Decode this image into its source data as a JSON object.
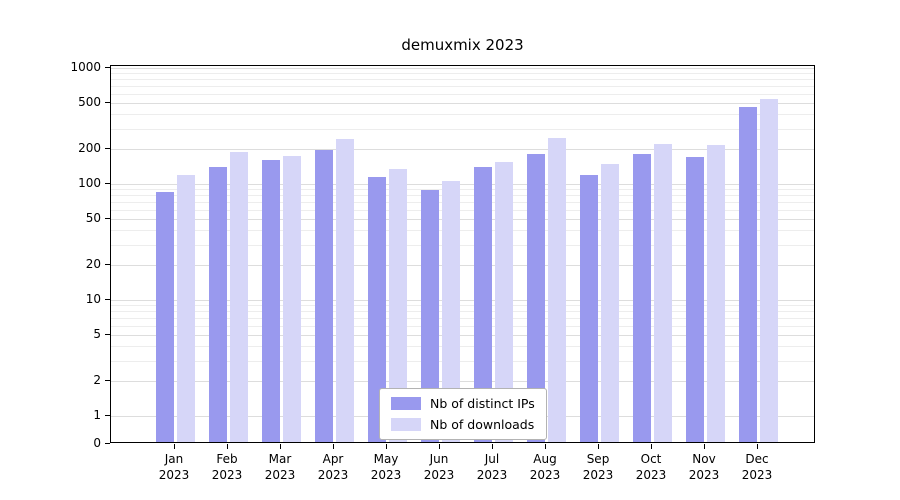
{
  "chart_data": {
    "type": "bar",
    "title": "demuxmix 2023",
    "categories": [
      "Jan",
      "Feb",
      "Mar",
      "Apr",
      "May",
      "Jun",
      "Jul",
      "Aug",
      "Sep",
      "Oct",
      "Nov",
      "Dec"
    ],
    "x_year": "2023",
    "series": [
      {
        "name": "Nb of distinct IPs",
        "color": "#9999ee",
        "values": [
          85,
          140,
          160,
          195,
          115,
          88,
          140,
          180,
          120,
          180,
          170,
          460
        ]
      },
      {
        "name": "Nb of downloads",
        "color": "#d6d6f8",
        "values": [
          120,
          190,
          175,
          245,
          135,
          107,
          155,
          250,
          150,
          220,
          215,
          540
        ]
      }
    ],
    "yscale": "log",
    "yticks": [
      0,
      1,
      2,
      5,
      10,
      20,
      50,
      100,
      200,
      500,
      1000
    ],
    "ylim": [
      0,
      1050
    ],
    "grid": true,
    "legend_position": "lower center"
  }
}
